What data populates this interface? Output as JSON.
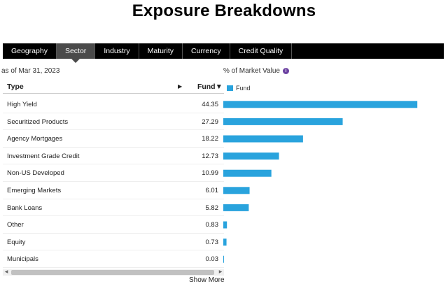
{
  "page": {
    "title": "Exposure Breakdowns"
  },
  "tabs": [
    {
      "label": "Geography"
    },
    {
      "label": "Sector"
    },
    {
      "label": "Industry"
    },
    {
      "label": "Maturity"
    },
    {
      "label": "Currency"
    },
    {
      "label": "Credit Quality"
    }
  ],
  "active_tab": "Sector",
  "table": {
    "as_of": "as of Mar 31, 2023",
    "col_type": "Type",
    "col_fund": "Fund▼",
    "sort_arrow": "▶",
    "show_more": "Show More"
  },
  "chart_header": {
    "label": "% of Market Value",
    "info_icon": "i"
  },
  "chart_data": {
    "type": "bar",
    "orientation": "horizontal",
    "categories": [
      "High Yield",
      "Securitized Products",
      "Agency Mortgages",
      "Investment Grade Credit",
      "Non-US Developed",
      "Emerging Markets",
      "Bank Loans",
      "Other",
      "Equity",
      "Municipals"
    ],
    "series": [
      {
        "name": "Fund",
        "values": [
          44.35,
          27.29,
          18.22,
          12.73,
          10.99,
          6.01,
          5.82,
          0.83,
          0.73,
          0.03
        ],
        "color": "#29a3dd"
      }
    ],
    "value_labels": [
      "44.35",
      "27.29",
      "18.22",
      "12.73",
      "10.99",
      "6.01",
      "5.82",
      "0.83",
      "0.73",
      "0.03"
    ],
    "xlim": [
      0,
      48
    ],
    "grid": false,
    "legend": "top-left"
  }
}
